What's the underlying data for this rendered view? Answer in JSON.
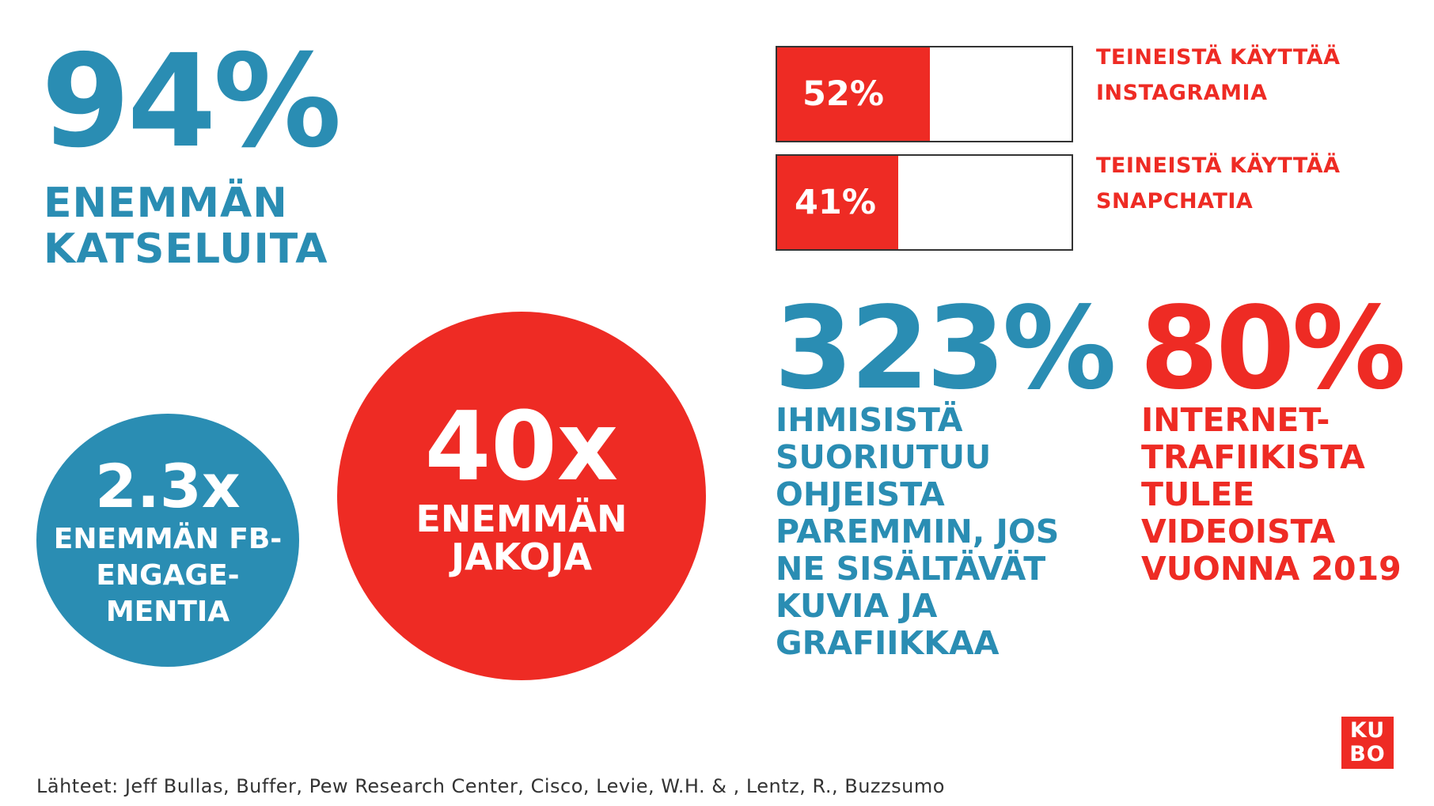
{
  "stat_views": {
    "value": "94%",
    "label": "ENEMMÄN KATSELUITA"
  },
  "bars": [
    {
      "percent": "52%",
      "fraction": 0.52,
      "label_line1": "TEINEISTÄ KÄYTTÄÄ",
      "label_line2": "INSTAGRAMIA"
    },
    {
      "percent": "41%",
      "fraction": 0.41,
      "label_line1": "TEINEISTÄ KÄYTTÄÄ",
      "label_line2": "SNAPCHATIA"
    }
  ],
  "stat_instructions": {
    "value": "323%",
    "lines": [
      "IHMISISTÄ",
      "SUORIUTUU",
      "OHJEISTA",
      "PAREMMIN, JOS",
      "NE SISÄLTÄVÄT",
      "KUVIA JA",
      "GRAFIIKKAA"
    ]
  },
  "stat_traffic": {
    "value": "80%",
    "lines": [
      "INTERNET-",
      "TRAFIIKISTA",
      "TULEE",
      "VIDEOISTA",
      "VUONNA 2019"
    ]
  },
  "circle_fb": {
    "value": "2.3x",
    "lines": [
      "ENEMMÄN FB-",
      "ENGAGE-",
      "MENTIA"
    ]
  },
  "circle_shares": {
    "value": "40x",
    "lines": [
      "ENEMMÄN",
      "JAKOJA"
    ]
  },
  "logo": {
    "line1": "KU",
    "line2": "BO"
  },
  "sources": "Lähteet: Jeff Bullas, Buffer, Pew Research Center, Cisco, Levie, W.H. & , Lentz, R., Buzzsumo",
  "colors": {
    "blue": "#2a8db3",
    "red": "#ee2b24"
  }
}
